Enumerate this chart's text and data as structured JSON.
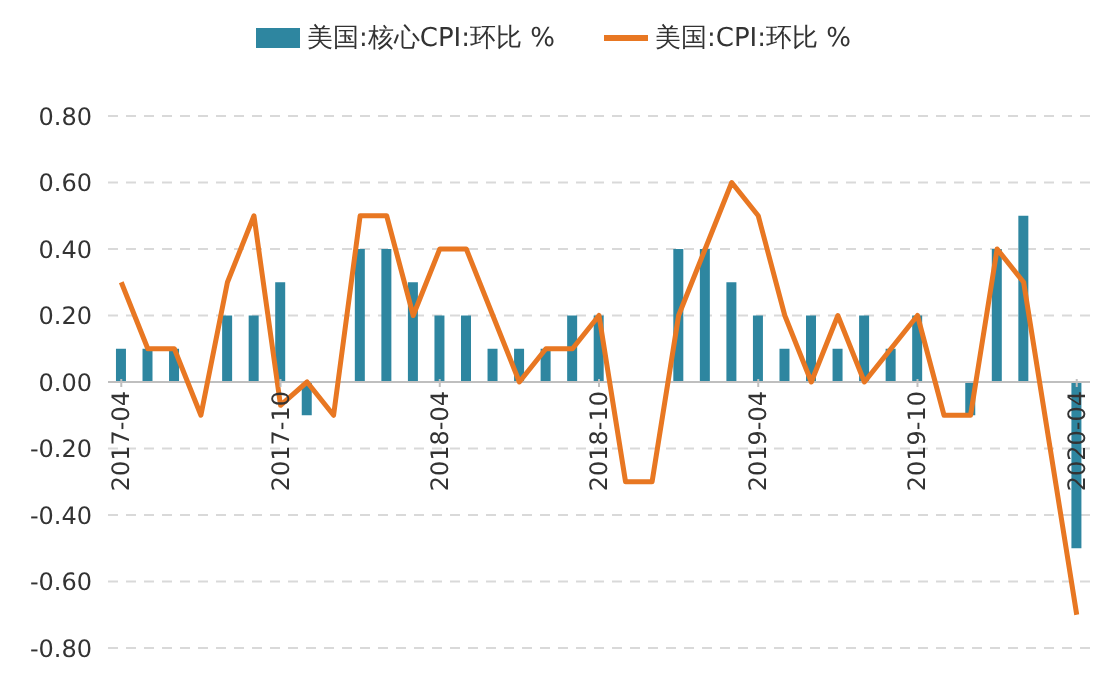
{
  "chart_data": {
    "type": "bar",
    "categories": [
      "2017-04",
      null,
      null,
      null,
      null,
      null,
      "2017-10",
      null,
      null,
      null,
      null,
      null,
      "2018-04",
      null,
      null,
      null,
      null,
      null,
      "2018-10",
      null,
      null,
      null,
      null,
      null,
      "2019-04",
      null,
      null,
      null,
      null,
      null,
      "2019-10",
      null,
      null,
      null,
      null,
      null,
      "2020-04"
    ],
    "series": [
      {
        "name": "美国:核心CPI:环比 %",
        "color": "#2e86a0",
        "values": [
          0.1,
          0.1,
          0.1,
          0,
          0.2,
          0.2,
          0.3,
          -0.1,
          0,
          0.4,
          0.4,
          0.3,
          0.2,
          0.2,
          0.1,
          0.1,
          0.1,
          0.2,
          0.2,
          0,
          0,
          0.4,
          0.4,
          0.3,
          0.2,
          0.1,
          0.2,
          0.1,
          0.2,
          0.1,
          0.2,
          0,
          -0.1,
          0.4,
          0.5,
          0,
          -0.5
        ]
      },
      {
        "name": "美国:CPI:环比 %",
        "type": "line",
        "color": "#e87722",
        "values": [
          0.3,
          0.1,
          0.1,
          -0.1,
          0.3,
          0.5,
          -0.07,
          0,
          -0.1,
          0.5,
          0.5,
          0.2,
          0.4,
          0.4,
          0.2,
          0,
          0.1,
          0.1,
          0.2,
          -0.3,
          -0.3,
          0.2,
          0.4,
          0.6,
          0.5,
          0.2,
          0,
          0.2,
          0,
          0.1,
          0.2,
          -0.1,
          -0.1,
          0.4,
          0.3,
          -0.2,
          -0.7
        ]
      }
    ],
    "ylim": [
      -0.8,
      0.8
    ],
    "yticks": [
      {
        "value": -0.8,
        "label": "-0.80"
      },
      {
        "value": -0.6,
        "label": "-0.60"
      },
      {
        "value": -0.4,
        "label": "-0.40"
      },
      {
        "value": -0.2,
        "label": "-0.20"
      },
      {
        "value": 0,
        "label": "0.00"
      },
      {
        "value": 0.2,
        "label": "0.20"
      },
      {
        "value": 0.4,
        "label": "0.40"
      },
      {
        "value": 0.6,
        "label": "0.60"
      },
      {
        "value": 0.8,
        "label": "0.80"
      }
    ],
    "grid": "y",
    "legend": "top",
    "marker": "none",
    "line_style": "solid"
  }
}
